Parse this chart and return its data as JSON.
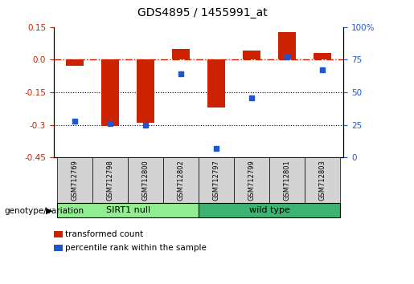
{
  "title": "GDS4895 / 1455991_at",
  "samples": [
    "GSM712769",
    "GSM712798",
    "GSM712800",
    "GSM712802",
    "GSM712797",
    "GSM712799",
    "GSM712801",
    "GSM712803"
  ],
  "transformed_count": [
    -0.03,
    -0.305,
    -0.29,
    0.05,
    -0.22,
    0.04,
    0.125,
    0.03
  ],
  "percentile_rank": [
    28,
    26,
    25,
    64,
    7,
    46,
    77,
    67
  ],
  "groups": [
    {
      "label": "SIRT1 null",
      "start": 0,
      "end": 4,
      "color": "#90ee90"
    },
    {
      "label": "wild type",
      "start": 4,
      "end": 8,
      "color": "#3cb371"
    }
  ],
  "left_ylim": [
    -0.45,
    0.15
  ],
  "left_yticks": [
    0.15,
    0.0,
    -0.15,
    -0.3,
    -0.45
  ],
  "right_ylim": [
    0,
    100
  ],
  "right_yticks": [
    100,
    75,
    50,
    25,
    0
  ],
  "bar_color": "#cc2200",
  "dot_color": "#2255cc",
  "zero_line_color": "#cc2200",
  "grid_color": "#000000",
  "bar_width": 0.5,
  "legend_items": [
    {
      "color": "#cc2200",
      "label": "transformed count"
    },
    {
      "color": "#2255cc",
      "label": "percentile rank within the sample"
    }
  ]
}
